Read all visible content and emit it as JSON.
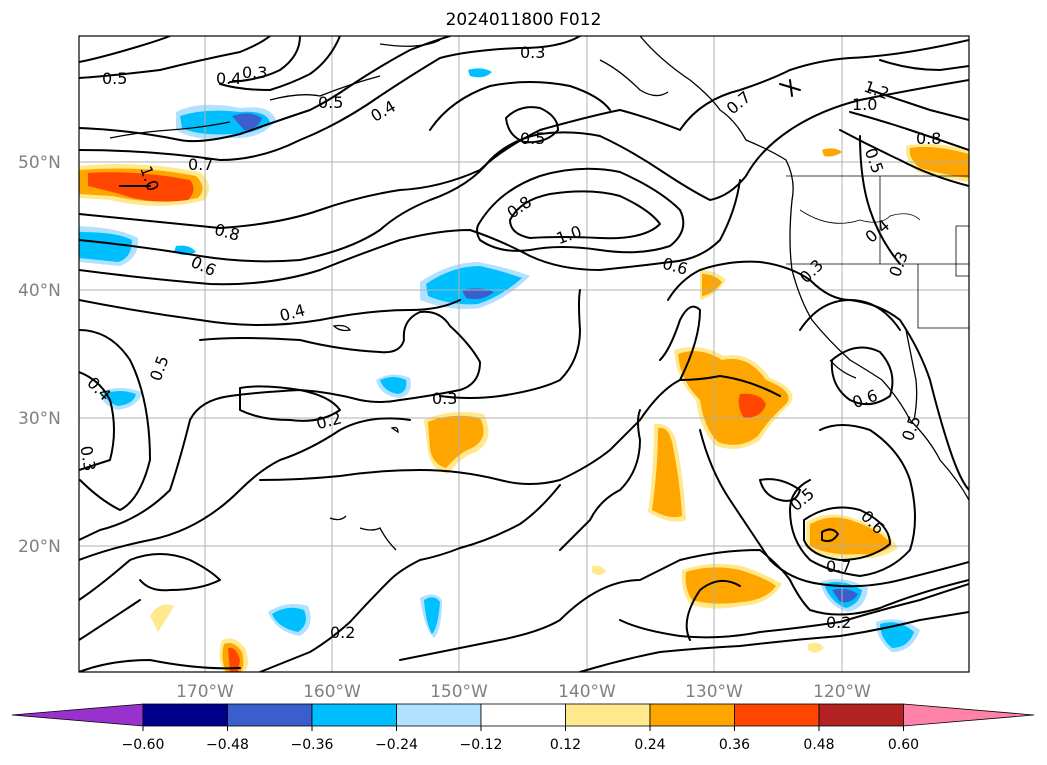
{
  "title": "2024011800 F012",
  "lat_labels": [
    "50°N",
    "40°N",
    "30°N",
    "20°N"
  ],
  "lon_labels": [
    "170°W",
    "160°W",
    "150°W",
    "140°W",
    "130°W",
    "120°W"
  ],
  "colorbar": {
    "ticks": [
      "−0.60",
      "−0.48",
      "−0.36",
      "−0.24",
      "−0.12",
      "0.12",
      "0.24",
      "0.36",
      "0.48",
      "0.60"
    ],
    "colors": [
      "#9932cc",
      "#00008b",
      "#3a5fcd",
      "#00bfff",
      "#b0e2ff",
      "#ffffff",
      "#ffe98c",
      "#ffa500",
      "#ff4500",
      "#b22222",
      "#ff83a8"
    ]
  },
  "contour_labels": [
    "0.5",
    "0.4",
    "0.3",
    "0.5",
    "0.4",
    "0.3",
    "0.5",
    "0.7",
    "1.2",
    "1.0",
    "0.8",
    "0.5",
    "0.7",
    "1.0",
    "0.8",
    "0.8",
    "1.0",
    "0.6",
    "0.6",
    "0.4",
    "0.4",
    "0.3",
    "0.3",
    "0.5",
    "0.4",
    "0.3",
    "0.2",
    "0.3",
    "0.6",
    "0.5",
    "0.5",
    "0.6",
    "0.7",
    "0.2",
    "0.2"
  ]
}
